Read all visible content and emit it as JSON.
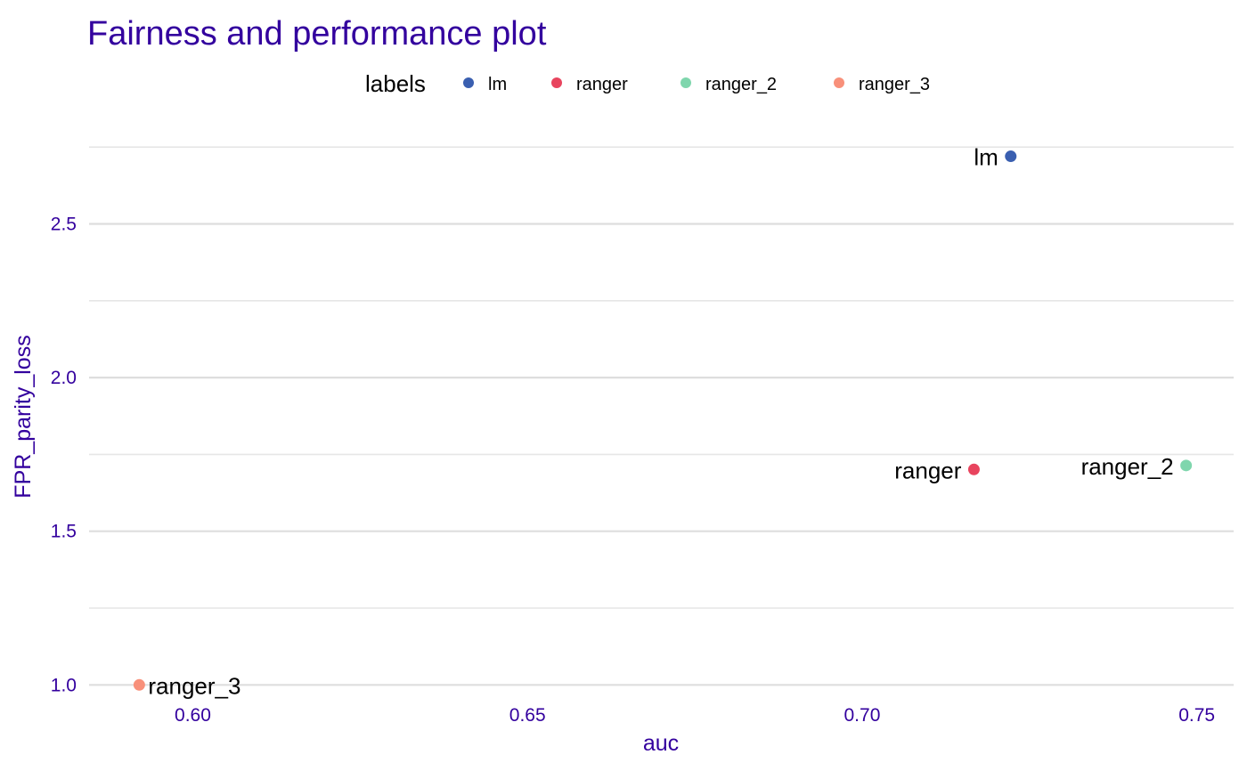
{
  "chart_data": {
    "type": "scatter",
    "title": "Fairness and performance plot",
    "xlabel": "auc",
    "ylabel": "FPR_parity_loss",
    "legend": {
      "title": "labels",
      "placement": "top",
      "entries": [
        "lm",
        "ranger",
        "ranger_2",
        "ranger_3"
      ]
    },
    "xlim": [
      0.5845,
      0.7555
    ],
    "ylim": [
      0.94,
      2.823
    ],
    "x_ticks": [
      0.6,
      0.65,
      0.7,
      0.75
    ],
    "x_tick_labels": [
      "0.60",
      "0.65",
      "0.70",
      "0.75"
    ],
    "y_ticks": [
      1.0,
      1.5,
      2.0,
      2.5
    ],
    "y_tick_labels": [
      "1.0",
      "1.5",
      "2.0",
      "2.5"
    ],
    "y_minor_ticks": [
      1.25,
      1.75,
      2.25,
      2.75
    ],
    "grid": "horizontal",
    "points": [
      {
        "label": "lm",
        "x": 0.7222,
        "y": 2.72,
        "color": "#3a5fb0",
        "label_side": "left"
      },
      {
        "label": "ranger",
        "x": 0.7167,
        "y": 1.701,
        "color": "#e8445e",
        "label_side": "left"
      },
      {
        "label": "ranger_2",
        "x": 0.7484,
        "y": 1.714,
        "color": "#7fd6ad",
        "label_side": "left"
      },
      {
        "label": "ranger_3",
        "x": 0.592,
        "y": 1.0,
        "color": "#f8907a",
        "label_side": "right"
      }
    ]
  }
}
